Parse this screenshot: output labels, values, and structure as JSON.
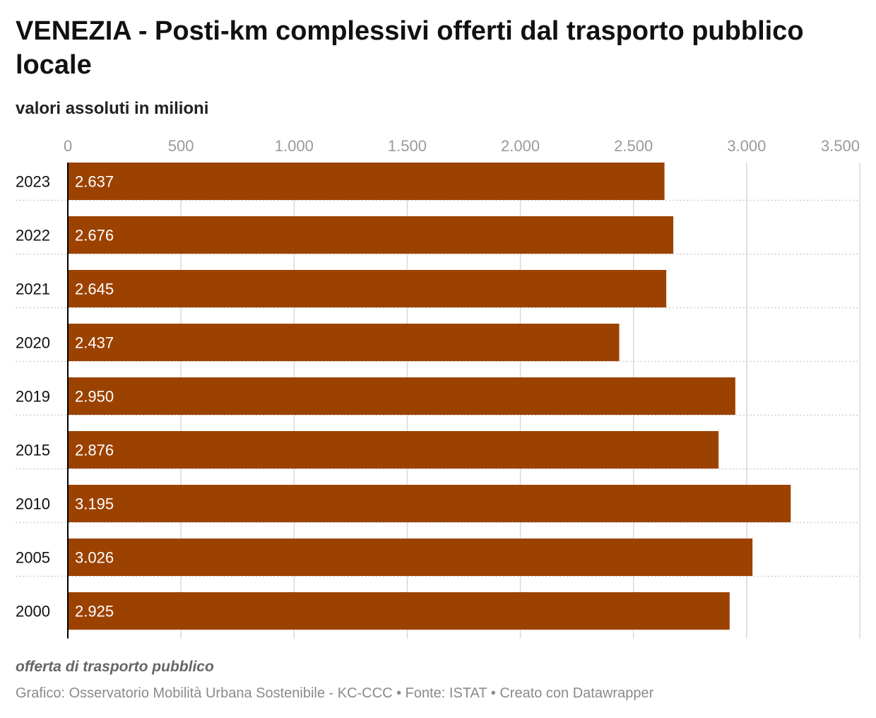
{
  "title": "VENEZIA - Posti-km complessivi offerti dal trasporto pubblico locale",
  "subtitle": "valori assoluti in milioni",
  "note": "offerta di trasporto pubblico",
  "credits": "Grafico: Osservatorio Mobilità Urbana Sostenibile - KC-CCC • Fonte: ISTAT • Creato con Datawrapper",
  "colors": {
    "bar": "#9c4200",
    "grid": "#d9d9d9",
    "tick": "#9a9a9a",
    "axis": "#000000",
    "label_inside": "#ffffff"
  },
  "chart_data": {
    "type": "bar",
    "orientation": "horizontal",
    "categories": [
      "2023",
      "2022",
      "2021",
      "2020",
      "2019",
      "2015",
      "2010",
      "2005",
      "2000"
    ],
    "values": [
      2637,
      2676,
      2645,
      2437,
      2950,
      2876,
      3195,
      3026,
      2925
    ],
    "value_labels": [
      "2.637",
      "2.676",
      "2.645",
      "2.437",
      "2.950",
      "2.876",
      "3.195",
      "3.026",
      "2.925"
    ],
    "xticks": [
      0,
      500,
      1000,
      1500,
      2000,
      2500,
      3000,
      3500
    ],
    "xtick_labels": [
      "0",
      "500",
      "1.000",
      "1.500",
      "2.000",
      "2.500",
      "3.000",
      "3.500"
    ],
    "xlim": [
      0,
      3500
    ],
    "grid": true,
    "xlabel": "",
    "ylabel": ""
  }
}
